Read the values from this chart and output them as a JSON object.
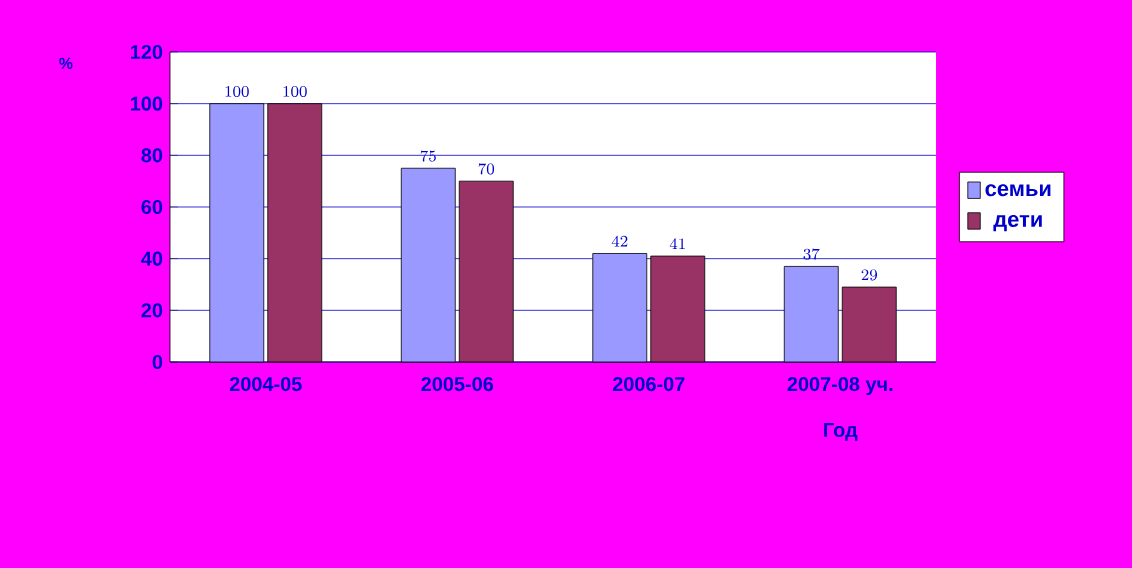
{
  "chart_data": {
    "type": "bar",
    "ylabel": "%",
    "xlabel": "Год",
    "categories": [
      "2004-05",
      "2005-06",
      "2006-07",
      "2007-08 уч."
    ],
    "series": [
      {
        "name": "семьи",
        "color": "#9999ff",
        "values": [
          100,
          75,
          42,
          37
        ]
      },
      {
        "name": "дети",
        "color": "#993366",
        "values": [
          100,
          70,
          41,
          29
        ]
      }
    ],
    "ylim": [
      0,
      120
    ],
    "yticks": [
      0,
      20,
      40,
      60,
      80,
      100,
      120
    ],
    "grid": "y",
    "legend": "right",
    "data_labels": true
  }
}
